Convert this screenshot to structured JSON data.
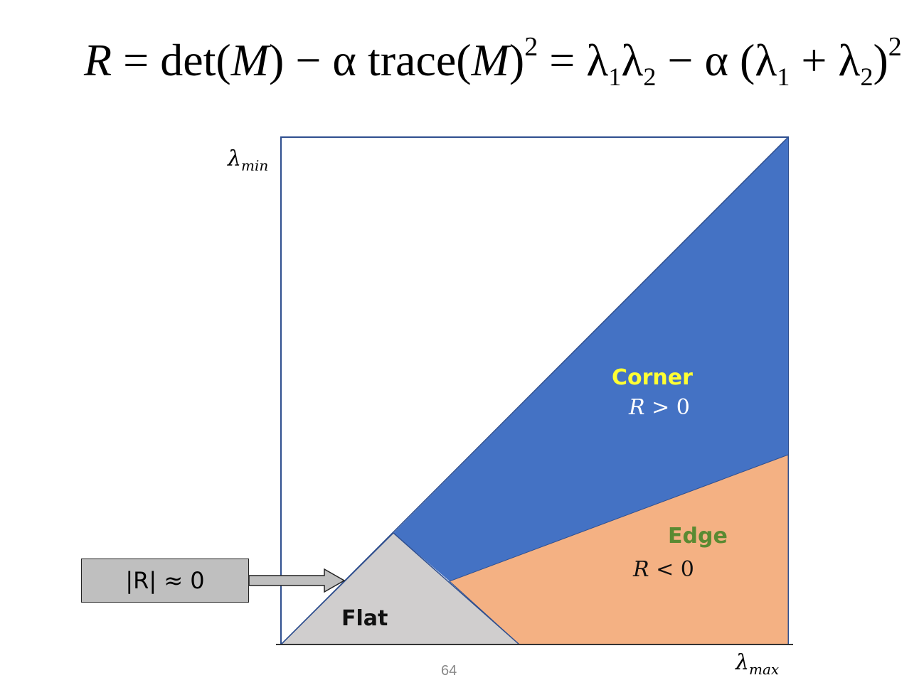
{
  "formula": {
    "R": "R",
    "eq1": " = det(",
    "M1": "M",
    "close1": ") − α trace(",
    "M2": "M",
    "close2": ")",
    "sq1": "2",
    "eq2": " = λ",
    "s1a": "1",
    "lam2": "λ",
    "s2a": "2",
    "minus": " − α (λ",
    "s1b": "1",
    "plus": " + λ",
    "s2b": "2",
    "close3": ")",
    "sq2": "2"
  },
  "axes": {
    "y_symbol": "λ",
    "y_sub": "min",
    "x_symbol": "λ",
    "x_sub": "max"
  },
  "regions": {
    "corner": {
      "title": "Corner",
      "cond_var": "R",
      "cond_rest": " > 0",
      "color": "#4472c4"
    },
    "edge": {
      "title": "Edge",
      "cond_var": "R",
      "cond_rest": " < 0",
      "color": "#f4b183"
    },
    "flat": {
      "title": "Flat",
      "color": "#d0cece"
    }
  },
  "callout": {
    "text": "|R| ≈ 0"
  },
  "page_number": "64"
}
